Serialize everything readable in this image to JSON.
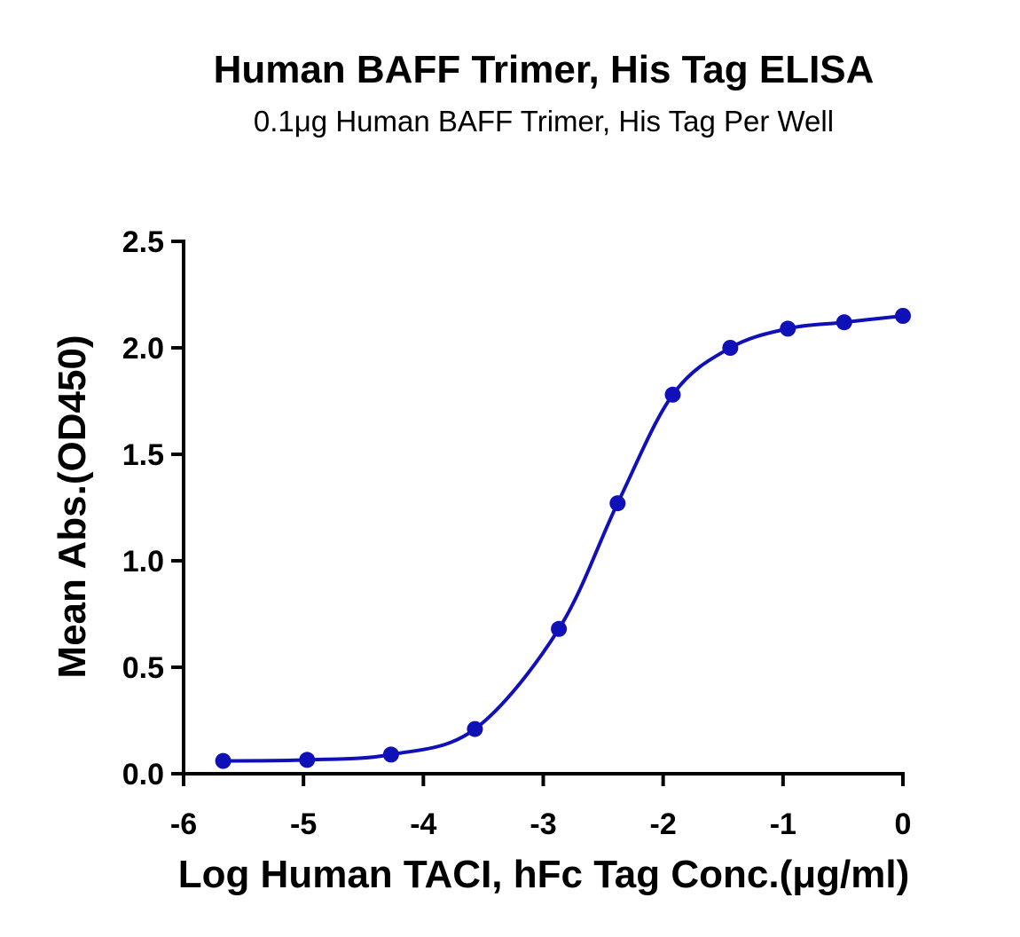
{
  "chart_data": {
    "type": "scatter",
    "title": "Human BAFF Trimer, His Tag ELISA",
    "subtitle": "0.1μg Human BAFF Trimer, His Tag Per Well",
    "xlabel": "Log Human TACI, hFc Tag Conc.(μg/ml)",
    "ylabel": "Mean Abs.(OD450)",
    "xlim": [
      -6,
      0
    ],
    "ylim": [
      0,
      2.5
    ],
    "xticks": [
      "-6",
      "-5",
      "-4",
      "-3",
      "-2",
      "-1",
      "0"
    ],
    "yticks": [
      "0.0",
      "0.5",
      "1.0",
      "1.5",
      "2.0",
      "2.5"
    ],
    "grid": false,
    "series": [
      {
        "color": "#1010b8",
        "x": [
          -5.67,
          -4.97,
          -4.27,
          -3.57,
          -2.87,
          -2.38,
          -1.92,
          -1.44,
          -0.96,
          -0.49,
          0
        ],
        "y": [
          0.06,
          0.065,
          0.09,
          0.21,
          0.68,
          1.27,
          1.78,
          2.0,
          2.09,
          2.12,
          2.15
        ],
        "fit_curve": true
      }
    ]
  }
}
